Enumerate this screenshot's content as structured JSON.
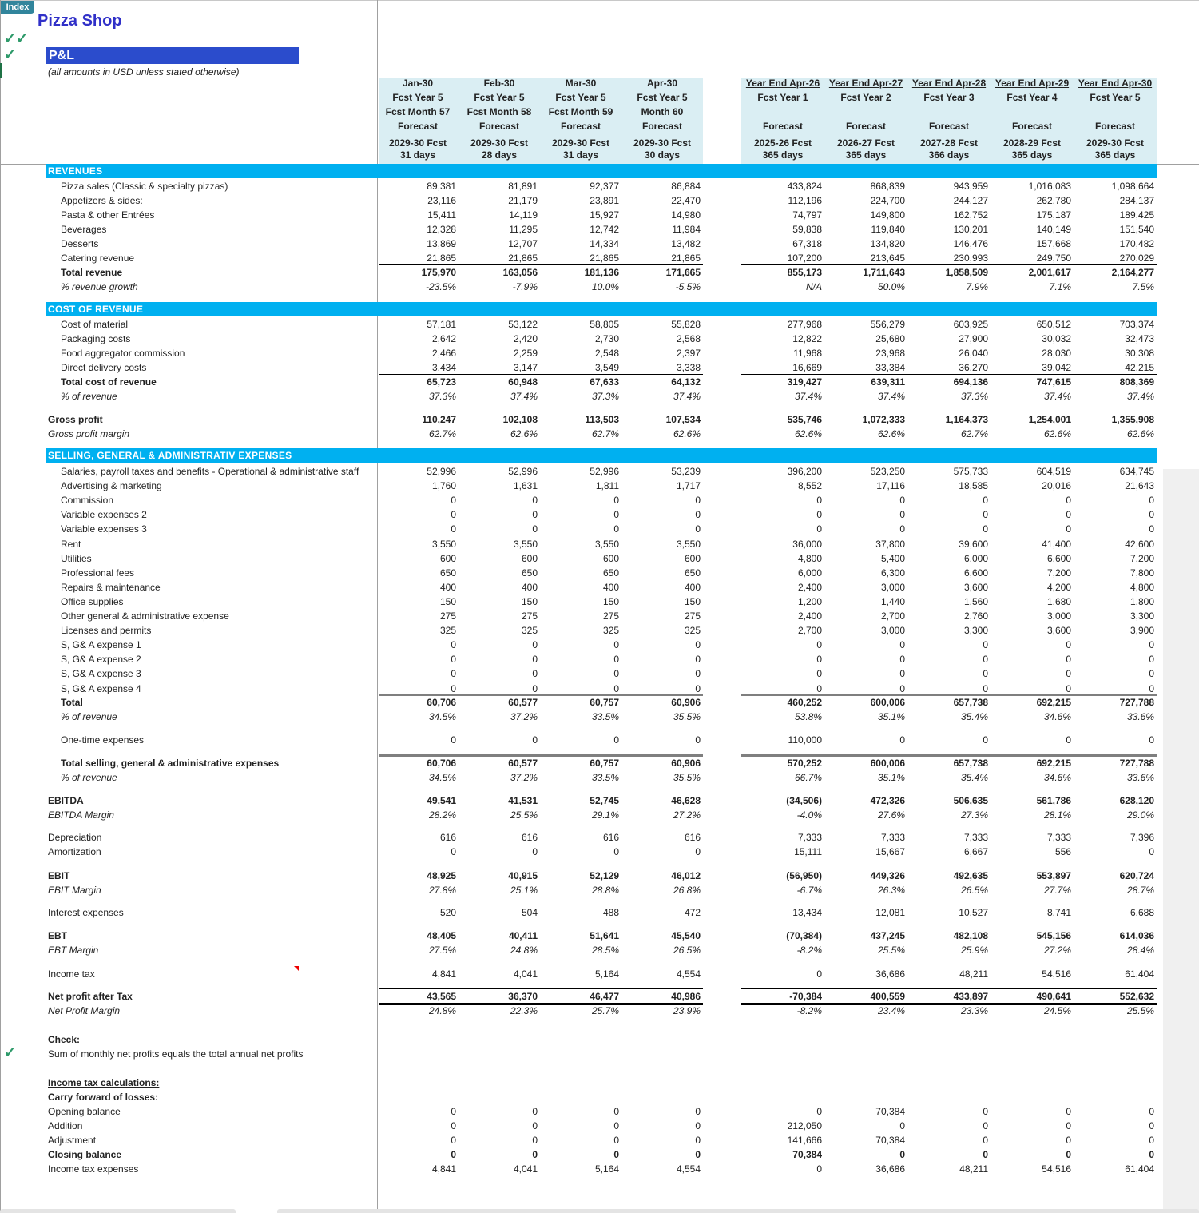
{
  "index_button": "Index",
  "title": "Pizza Shop",
  "section_title": "P&L",
  "subtitle": "(all amounts in USD unless stated otherwise)",
  "colors": {
    "section_bar": "#00b0f0",
    "header_bg": "#daeef3",
    "title": "#3030c8",
    "pl_box": "#2b4ccc",
    "check": "#2e9a6a"
  },
  "check_marks": [
    "✓✓",
    "✓",
    "✓"
  ],
  "columns": [
    {
      "lines": [
        "Jan-30",
        "Fcst Year 5",
        "Fcst Month 57",
        "Forecast",
        "2029-30 Fcst",
        "31 days"
      ]
    },
    {
      "lines": [
        "Feb-30",
        "Fcst Year 5",
        "Fcst Month 58",
        "Forecast",
        "2029-30 Fcst",
        "28 days"
      ]
    },
    {
      "lines": [
        "Mar-30",
        "Fcst Year 5",
        "Fcst Month 59",
        "Forecast",
        "2029-30 Fcst",
        "31 days"
      ]
    },
    {
      "lines": [
        "Apr-30",
        "Fcst Year 5",
        "Month 60",
        "Forecast",
        "2029-30 Fcst",
        "30 days"
      ]
    },
    {
      "lines": [
        "Year End  Apr-26",
        "Fcst Year 1",
        "",
        "Forecast",
        "2025-26 Fcst",
        "365 days"
      ]
    },
    {
      "lines": [
        "Year End  Apr-27",
        "Fcst Year 2",
        "",
        "Forecast",
        "2026-27 Fcst",
        "365 days"
      ]
    },
    {
      "lines": [
        "Year End  Apr-28",
        "Fcst Year 3",
        "",
        "Forecast",
        "2027-28 Fcst",
        "366 days"
      ]
    },
    {
      "lines": [
        "Year End  Apr-29",
        "Fcst Year 4",
        "",
        "Forecast",
        "2028-29 Fcst",
        "365 days"
      ]
    },
    {
      "lines": [
        "Year End  Apr-30",
        "Fcst Year 5",
        "",
        "Forecast",
        "2029-30 Fcst",
        "365 days"
      ]
    }
  ],
  "rows": [
    {
      "kind": "section",
      "label": "REVENUES"
    },
    {
      "kind": "item",
      "level": 1,
      "label": "Pizza sales (Classic & specialty pizzas)",
      "values": [
        "89,381",
        "81,891",
        "92,377",
        "86,884",
        "433,824",
        "868,839",
        "943,959",
        "1,016,083",
        "1,098,664"
      ]
    },
    {
      "kind": "item",
      "level": 1,
      "label": "Appetizers & sides:",
      "values": [
        "23,116",
        "21,179",
        "23,891",
        "22,470",
        "112,196",
        "224,700",
        "244,127",
        "262,780",
        "284,137"
      ]
    },
    {
      "kind": "item",
      "level": 1,
      "label": "Pasta & other Entrées",
      "values": [
        "15,411",
        "14,119",
        "15,927",
        "14,980",
        "74,797",
        "149,800",
        "162,752",
        "175,187",
        "189,425"
      ]
    },
    {
      "kind": "item",
      "level": 1,
      "label": "Beverages",
      "values": [
        "12,328",
        "11,295",
        "12,742",
        "11,984",
        "59,838",
        "119,840",
        "130,201",
        "140,149",
        "151,540"
      ]
    },
    {
      "kind": "item",
      "level": 1,
      "label": "Desserts",
      "values": [
        "13,869",
        "12,707",
        "14,334",
        "13,482",
        "67,318",
        "134,820",
        "146,476",
        "157,668",
        "170,482"
      ]
    },
    {
      "kind": "item",
      "level": 1,
      "label": "Catering revenue",
      "values": [
        "21,865",
        "21,865",
        "21,865",
        "21,865",
        "107,200",
        "213,645",
        "230,993",
        "249,750",
        "270,029"
      ]
    },
    {
      "kind": "total",
      "level": 1,
      "border": "top",
      "label": "Total revenue",
      "values": [
        "175,970",
        "163,056",
        "181,136",
        "171,665",
        "855,173",
        "1,711,643",
        "1,858,509",
        "2,001,617",
        "2,164,277"
      ]
    },
    {
      "kind": "pct",
      "level": 1,
      "label": "% revenue growth",
      "values": [
        "-23.5%",
        "-7.9%",
        "10.0%",
        "-5.5%",
        "N/A",
        "50.0%",
        "7.9%",
        "7.1%",
        "7.5%"
      ]
    },
    {
      "kind": "section",
      "label": "COST OF REVENUE"
    },
    {
      "kind": "item",
      "level": 1,
      "label": "Cost of material",
      "values": [
        "57,181",
        "53,122",
        "58,805",
        "55,828",
        "277,968",
        "556,279",
        "603,925",
        "650,512",
        "703,374"
      ]
    },
    {
      "kind": "item",
      "level": 1,
      "label": "Packaging costs",
      "values": [
        "2,642",
        "2,420",
        "2,730",
        "2,568",
        "12,822",
        "25,680",
        "27,900",
        "30,032",
        "32,473"
      ]
    },
    {
      "kind": "item",
      "level": 1,
      "label": "Food aggregator commission",
      "values": [
        "2,466",
        "2,259",
        "2,548",
        "2,397",
        "11,968",
        "23,968",
        "26,040",
        "28,030",
        "30,308"
      ]
    },
    {
      "kind": "item",
      "level": 1,
      "label": "Direct delivery costs",
      "values": [
        "3,434",
        "3,147",
        "3,549",
        "3,338",
        "16,669",
        "33,384",
        "36,270",
        "39,042",
        "42,215"
      ]
    },
    {
      "kind": "total",
      "level": 1,
      "border": "top",
      "label": "Total cost of revenue",
      "values": [
        "65,723",
        "60,948",
        "67,633",
        "64,132",
        "319,427",
        "639,311",
        "694,136",
        "747,615",
        "808,369"
      ]
    },
    {
      "kind": "pct",
      "level": 1,
      "label": "% of revenue",
      "values": [
        "37.3%",
        "37.4%",
        "37.3%",
        "37.4%",
        "37.4%",
        "37.4%",
        "37.3%",
        "37.4%",
        "37.4%"
      ]
    },
    {
      "kind": "total",
      "level": 0,
      "label": "Gross profit",
      "values": [
        "110,247",
        "102,108",
        "113,503",
        "107,534",
        "535,746",
        "1,072,333",
        "1,164,373",
        "1,254,001",
        "1,355,908"
      ]
    },
    {
      "kind": "pct",
      "level": 0,
      "label": "Gross profit margin",
      "values": [
        "62.7%",
        "62.6%",
        "62.7%",
        "62.6%",
        "62.6%",
        "62.6%",
        "62.7%",
        "62.6%",
        "62.6%"
      ]
    },
    {
      "kind": "section",
      "label": "SELLING, GENERAL & ADMINISTRATIV EXPENSES"
    },
    {
      "kind": "item",
      "level": 1,
      "label": "Salaries, payroll taxes and benefits - Operational & administrative staff",
      "values": [
        "52,996",
        "52,996",
        "52,996",
        "53,239",
        "396,200",
        "523,250",
        "575,733",
        "604,519",
        "634,745"
      ]
    },
    {
      "kind": "item",
      "level": 1,
      "label": "Advertising & marketing",
      "values": [
        "1,760",
        "1,631",
        "1,811",
        "1,717",
        "8,552",
        "17,116",
        "18,585",
        "20,016",
        "21,643"
      ]
    },
    {
      "kind": "item",
      "level": 1,
      "label": "Commission",
      "values": [
        "0",
        "0",
        "0",
        "0",
        "0",
        "0",
        "0",
        "0",
        "0"
      ]
    },
    {
      "kind": "item",
      "level": 1,
      "label": "Variable expenses 2",
      "values": [
        "0",
        "0",
        "0",
        "0",
        "0",
        "0",
        "0",
        "0",
        "0"
      ]
    },
    {
      "kind": "item",
      "level": 1,
      "label": "Variable expenses 3",
      "values": [
        "0",
        "0",
        "0",
        "0",
        "0",
        "0",
        "0",
        "0",
        "0"
      ]
    },
    {
      "kind": "item",
      "level": 1,
      "label": "Rent",
      "values": [
        "3,550",
        "3,550",
        "3,550",
        "3,550",
        "36,000",
        "37,800",
        "39,600",
        "41,400",
        "42,600"
      ]
    },
    {
      "kind": "item",
      "level": 1,
      "label": "Utilities",
      "values": [
        "600",
        "600",
        "600",
        "600",
        "4,800",
        "5,400",
        "6,000",
        "6,600",
        "7,200"
      ]
    },
    {
      "kind": "item",
      "level": 1,
      "label": "Professional fees",
      "values": [
        "650",
        "650",
        "650",
        "650",
        "6,000",
        "6,300",
        "6,600",
        "7,200",
        "7,800"
      ]
    },
    {
      "kind": "item",
      "level": 1,
      "label": "Repairs & maintenance",
      "values": [
        "400",
        "400",
        "400",
        "400",
        "2,400",
        "3,000",
        "3,600",
        "4,200",
        "4,800"
      ]
    },
    {
      "kind": "item",
      "level": 1,
      "label": "Office supplies",
      "values": [
        "150",
        "150",
        "150",
        "150",
        "1,200",
        "1,440",
        "1,560",
        "1,680",
        "1,800"
      ]
    },
    {
      "kind": "item",
      "level": 1,
      "label": "Other general & administrative expense",
      "values": [
        "275",
        "275",
        "275",
        "275",
        "2,400",
        "2,700",
        "2,760",
        "3,000",
        "3,300"
      ]
    },
    {
      "kind": "item",
      "level": 1,
      "label": "Licenses and permits",
      "values": [
        "325",
        "325",
        "325",
        "325",
        "2,700",
        "3,000",
        "3,300",
        "3,600",
        "3,900"
      ]
    },
    {
      "kind": "item",
      "level": 1,
      "label": "S, G& A expense 1",
      "values": [
        "0",
        "0",
        "0",
        "0",
        "0",
        "0",
        "0",
        "0",
        "0"
      ]
    },
    {
      "kind": "item",
      "level": 1,
      "label": "S, G& A expense 2",
      "values": [
        "0",
        "0",
        "0",
        "0",
        "0",
        "0",
        "0",
        "0",
        "0"
      ]
    },
    {
      "kind": "item",
      "level": 1,
      "label": "S, G& A expense 3",
      "values": [
        "0",
        "0",
        "0",
        "0",
        "0",
        "0",
        "0",
        "0",
        "0"
      ]
    },
    {
      "kind": "item",
      "level": 1,
      "label": "S, G& A expense 4",
      "values": [
        "0",
        "0",
        "0",
        "0",
        "0",
        "0",
        "0",
        "0",
        "0"
      ]
    },
    {
      "kind": "total",
      "level": 1,
      "border": "thick",
      "label": "Total",
      "values": [
        "60,706",
        "60,577",
        "60,757",
        "60,906",
        "460,252",
        "600,006",
        "657,738",
        "692,215",
        "727,788"
      ]
    },
    {
      "kind": "pct",
      "level": 1,
      "label": "% of revenue",
      "values": [
        "34.5%",
        "37.2%",
        "33.5%",
        "35.5%",
        "53.8%",
        "35.1%",
        "35.4%",
        "34.6%",
        "33.6%"
      ]
    },
    {
      "kind": "item",
      "level": 1,
      "label": "One-time expenses",
      "values": [
        "0",
        "0",
        "0",
        "0",
        "110,000",
        "0",
        "0",
        "0",
        "0"
      ]
    },
    {
      "kind": "total",
      "level": 1,
      "border": "thick",
      "label": "Total selling, general & administrative expenses",
      "values": [
        "60,706",
        "60,577",
        "60,757",
        "60,906",
        "570,252",
        "600,006",
        "657,738",
        "692,215",
        "727,788"
      ]
    },
    {
      "kind": "pct",
      "level": 1,
      "label": "% of revenue",
      "values": [
        "34.5%",
        "37.2%",
        "33.5%",
        "35.5%",
        "66.7%",
        "35.1%",
        "35.4%",
        "34.6%",
        "33.6%"
      ]
    },
    {
      "kind": "total",
      "level": 0,
      "label": "EBITDA",
      "values": [
        "49,541",
        "41,531",
        "52,745",
        "46,628",
        "(34,506)",
        "472,326",
        "506,635",
        "561,786",
        "628,120"
      ]
    },
    {
      "kind": "pct",
      "level": 0,
      "label": "EBITDA Margin",
      "values": [
        "28.2%",
        "25.5%",
        "29.1%",
        "27.2%",
        "-4.0%",
        "27.6%",
        "27.3%",
        "28.1%",
        "29.0%"
      ]
    },
    {
      "kind": "item",
      "level": 0,
      "label": "Depreciation",
      "values": [
        "616",
        "616",
        "616",
        "616",
        "7,333",
        "7,333",
        "7,333",
        "7,333",
        "7,396"
      ]
    },
    {
      "kind": "item",
      "level": 0,
      "label": "Amortization",
      "values": [
        "0",
        "0",
        "0",
        "0",
        "15,111",
        "15,667",
        "6,667",
        "556",
        "0"
      ]
    },
    {
      "kind": "total",
      "level": 0,
      "label": "EBIT",
      "values": [
        "48,925",
        "40,915",
        "52,129",
        "46,012",
        "(56,950)",
        "449,326",
        "492,635",
        "553,897",
        "620,724"
      ]
    },
    {
      "kind": "pct",
      "level": 0,
      "label": "EBIT Margin",
      "values": [
        "27.8%",
        "25.1%",
        "28.8%",
        "26.8%",
        "-6.7%",
        "26.3%",
        "26.5%",
        "27.7%",
        "28.7%"
      ]
    },
    {
      "kind": "item",
      "level": 0,
      "label": "Interest expenses",
      "values": [
        "520",
        "504",
        "488",
        "472",
        "13,434",
        "12,081",
        "10,527",
        "8,741",
        "6,688"
      ]
    },
    {
      "kind": "total",
      "level": 0,
      "label": "EBT",
      "values": [
        "48,405",
        "40,411",
        "51,641",
        "45,540",
        "(70,384)",
        "437,245",
        "482,108",
        "545,156",
        "614,036"
      ]
    },
    {
      "kind": "pct",
      "level": 0,
      "label": "EBT Margin",
      "values": [
        "27.5%",
        "24.8%",
        "28.5%",
        "26.5%",
        "-8.2%",
        "25.5%",
        "25.9%",
        "27.2%",
        "28.4%"
      ]
    },
    {
      "kind": "item",
      "level": 0,
      "label": "Income tax",
      "values": [
        "4,841",
        "4,041",
        "5,164",
        "4,554",
        "0",
        "36,686",
        "48,211",
        "54,516",
        "61,404"
      ]
    },
    {
      "kind": "total",
      "level": 0,
      "border": "net",
      "label": "Net profit after Tax",
      "values": [
        "43,565",
        "36,370",
        "46,477",
        "40,986",
        "-70,384",
        "400,559",
        "433,897",
        "490,641",
        "552,632"
      ]
    },
    {
      "kind": "pct",
      "level": 0,
      "label": "Net Profit Margin",
      "values": [
        "24.8%",
        "22.3%",
        "25.7%",
        "23.9%",
        "-8.2%",
        "23.4%",
        "23.3%",
        "24.5%",
        "25.5%"
      ]
    },
    {
      "kind": "heading",
      "level": 0,
      "label": "Check:"
    },
    {
      "kind": "item",
      "level": 0,
      "label": "Sum of monthly net profits equals the total annual net profits"
    },
    {
      "kind": "heading",
      "level": 0,
      "label": "Income tax calculations:"
    },
    {
      "kind": "subheading",
      "level": 0,
      "label": "Carry forward of losses:"
    },
    {
      "kind": "item",
      "level": 0,
      "label": "Opening balance",
      "values": [
        "0",
        "0",
        "0",
        "0",
        "0",
        "70,384",
        "0",
        "0",
        "0"
      ]
    },
    {
      "kind": "item",
      "level": 0,
      "label": "Addition",
      "values": [
        "0",
        "0",
        "0",
        "0",
        "212,050",
        "0",
        "0",
        "0",
        "0"
      ]
    },
    {
      "kind": "item",
      "level": 0,
      "label": "Adjustment",
      "values": [
        "0",
        "0",
        "0",
        "0",
        "141,666",
        "70,384",
        "0",
        "0",
        "0"
      ]
    },
    {
      "kind": "total",
      "level": 0,
      "border": "top",
      "label": "Closing balance",
      "values": [
        "0",
        "0",
        "0",
        "0",
        "70,384",
        "0",
        "0",
        "0",
        "0"
      ]
    },
    {
      "kind": "item",
      "level": 0,
      "label": "Income tax expenses",
      "values": [
        "4,841",
        "4,041",
        "5,164",
        "4,554",
        "0",
        "36,686",
        "48,211",
        "54,516",
        "61,404"
      ]
    }
  ]
}
